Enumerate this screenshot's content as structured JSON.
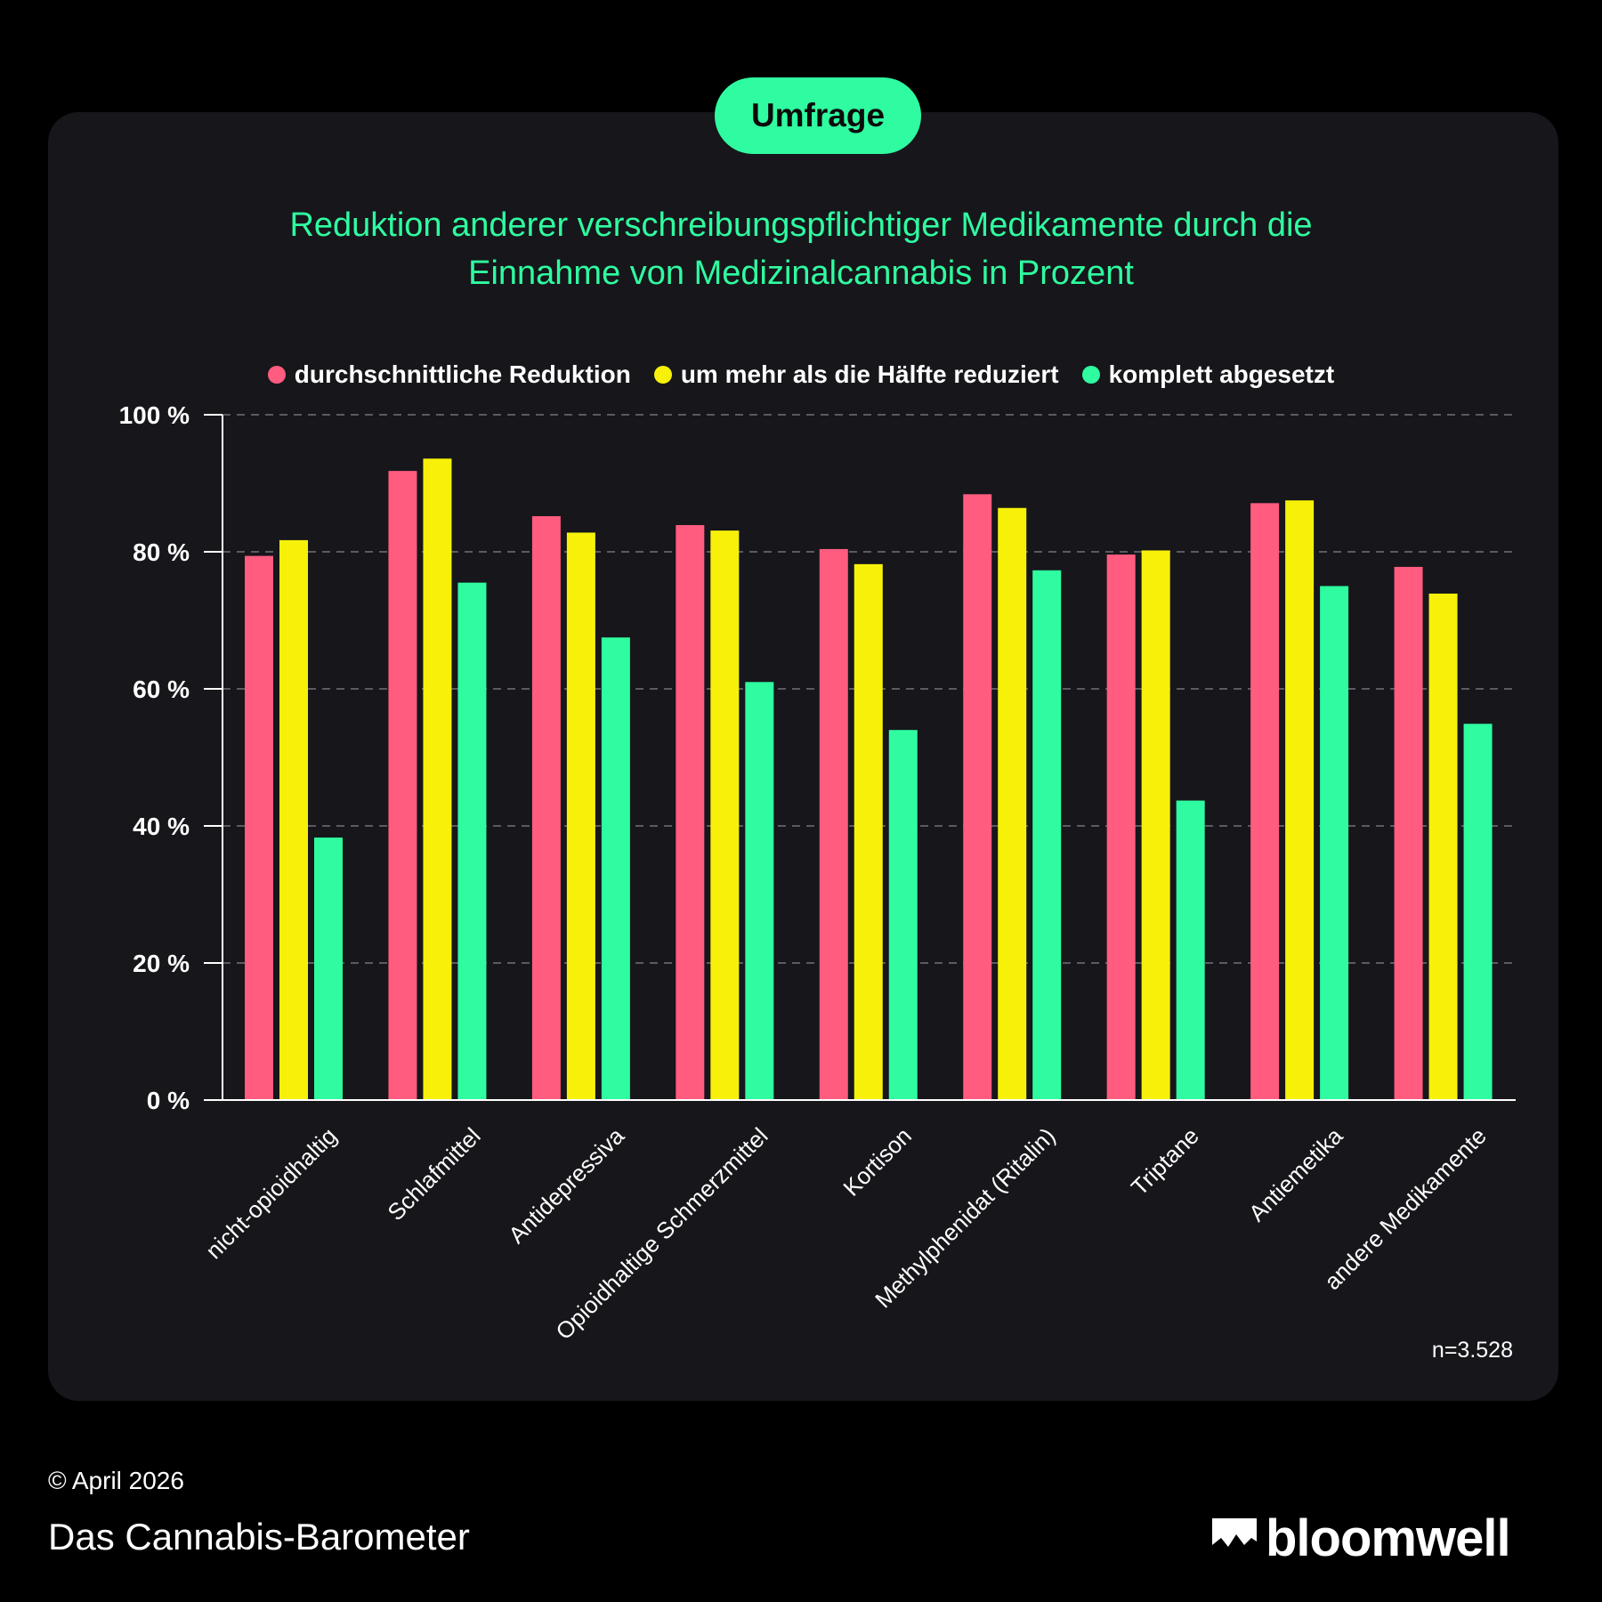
{
  "badge": "Umfrage",
  "title_line1": "Reduktion anderer verschreibungspflichtiger Medikamente durch die",
  "title_line2": "Einnahme von Medizinalcannabis in Prozent",
  "sample_size": "n=3.528",
  "footer": {
    "copyright": "© April 2026",
    "brand": "Das Cannabis-Barometer",
    "logo_text": "bloomwell"
  },
  "colors": {
    "pink": "#ff5c7f",
    "yellow": "#f7f10a",
    "green": "#2ffca0",
    "background": "#000000",
    "card": "#16161b"
  },
  "chart_data": {
    "type": "bar",
    "title": "Reduktion anderer verschreibungspflichtiger Medikamente durch die Einnahme von Medizinalcannabis in Prozent",
    "categories": [
      "nicht-opioidhaltig",
      "Schlafmittel",
      "Antidepressiva",
      "Opioidhaltige Schmerzmittel",
      "Kortison",
      "Methylphenidat (Ritalin)",
      "Triptane",
      "Antiemetika",
      "andere Medikamente"
    ],
    "series": [
      {
        "name": "durchschnittliche Reduktion",
        "color": "#ff5c7f",
        "values": [
          79.4,
          91.8,
          85.2,
          83.9,
          80.4,
          88.4,
          79.6,
          87.1,
          77.8
        ]
      },
      {
        "name": "um mehr als die Hälfte reduziert",
        "color": "#f7f10a",
        "values": [
          81.7,
          93.6,
          82.8,
          83.1,
          78.2,
          86.4,
          80.2,
          87.5,
          73.9
        ]
      },
      {
        "name": "komplett abgesetzt",
        "color": "#2ffca0",
        "values": [
          38.3,
          75.5,
          67.5,
          61.0,
          54.0,
          77.3,
          43.7,
          75.0,
          54.9
        ]
      }
    ],
    "yticks": [
      "0 %",
      "20 %",
      "40 %",
      "60 %",
      "80 %",
      "100 %"
    ],
    "ylim": [
      0,
      100
    ],
    "xlabel": "",
    "ylabel": "",
    "grid": true,
    "legend": "top"
  }
}
